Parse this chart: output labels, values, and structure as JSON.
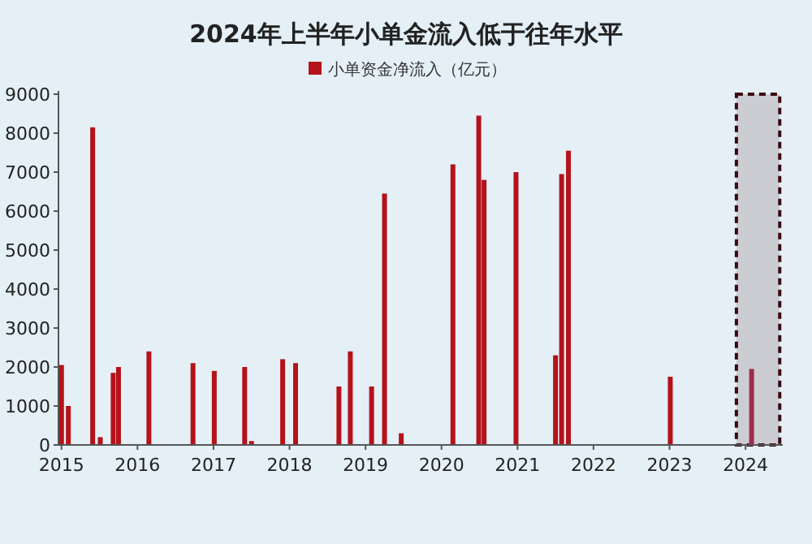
{
  "chart_data": {
    "type": "bar",
    "title": "2024年上半年小单金流入低于往年水平",
    "x": [
      2015.0,
      2015.09,
      2015.41,
      2015.51,
      2015.68,
      2015.75,
      2016.15,
      2016.73,
      2017.01,
      2017.41,
      2017.5,
      2017.91,
      2018.08,
      2018.65,
      2018.8,
      2019.08,
      2019.25,
      2019.47,
      2020.15,
      2020.49,
      2020.56,
      2020.98,
      2021.5,
      2021.58,
      2021.67,
      2023.01,
      2024.08
    ],
    "series": [
      {
        "name": "小单资金净流入（亿元）",
        "color": "#b5121b",
        "values": [
          2050,
          1000,
          8150,
          200,
          1850,
          2000,
          2400,
          2100,
          1900,
          2000,
          100,
          2200,
          2100,
          1500,
          2400,
          1500,
          6450,
          300,
          7200,
          8450,
          6800,
          7000,
          2300,
          6950,
          7550,
          1750,
          1950
        ],
        "colors": [
          "#b5121b",
          "#b5121b",
          "#b5121b",
          "#b5121b",
          "#b5121b",
          "#b5121b",
          "#b5121b",
          "#b5121b",
          "#b5121b",
          "#b5121b",
          "#b5121b",
          "#b5121b",
          "#b5121b",
          "#b5121b",
          "#b5121b",
          "#b5121b",
          "#b5121b",
          "#b5121b",
          "#b5121b",
          "#b5121b",
          "#b5121b",
          "#b5121b",
          "#b5121b",
          "#b5121b",
          "#b5121b",
          "#b5121b",
          "#9e2d4b"
        ]
      }
    ],
    "xlim": [
      2014.96,
      2024.49
    ],
    "xticks": [
      2015,
      2016,
      2017,
      2018,
      2019,
      2020,
      2021,
      2022,
      2023,
      2024
    ],
    "ylim": [
      0,
      9000
    ],
    "yticks": [
      0,
      1000,
      2000,
      3000,
      4000,
      5000,
      6000,
      7000,
      8000,
      9000
    ],
    "bands": [
      {
        "axis": "x",
        "from": 2023.88,
        "to": 2024.45,
        "color": "#3a0a10"
      }
    ],
    "grid": false,
    "legend": "top"
  }
}
